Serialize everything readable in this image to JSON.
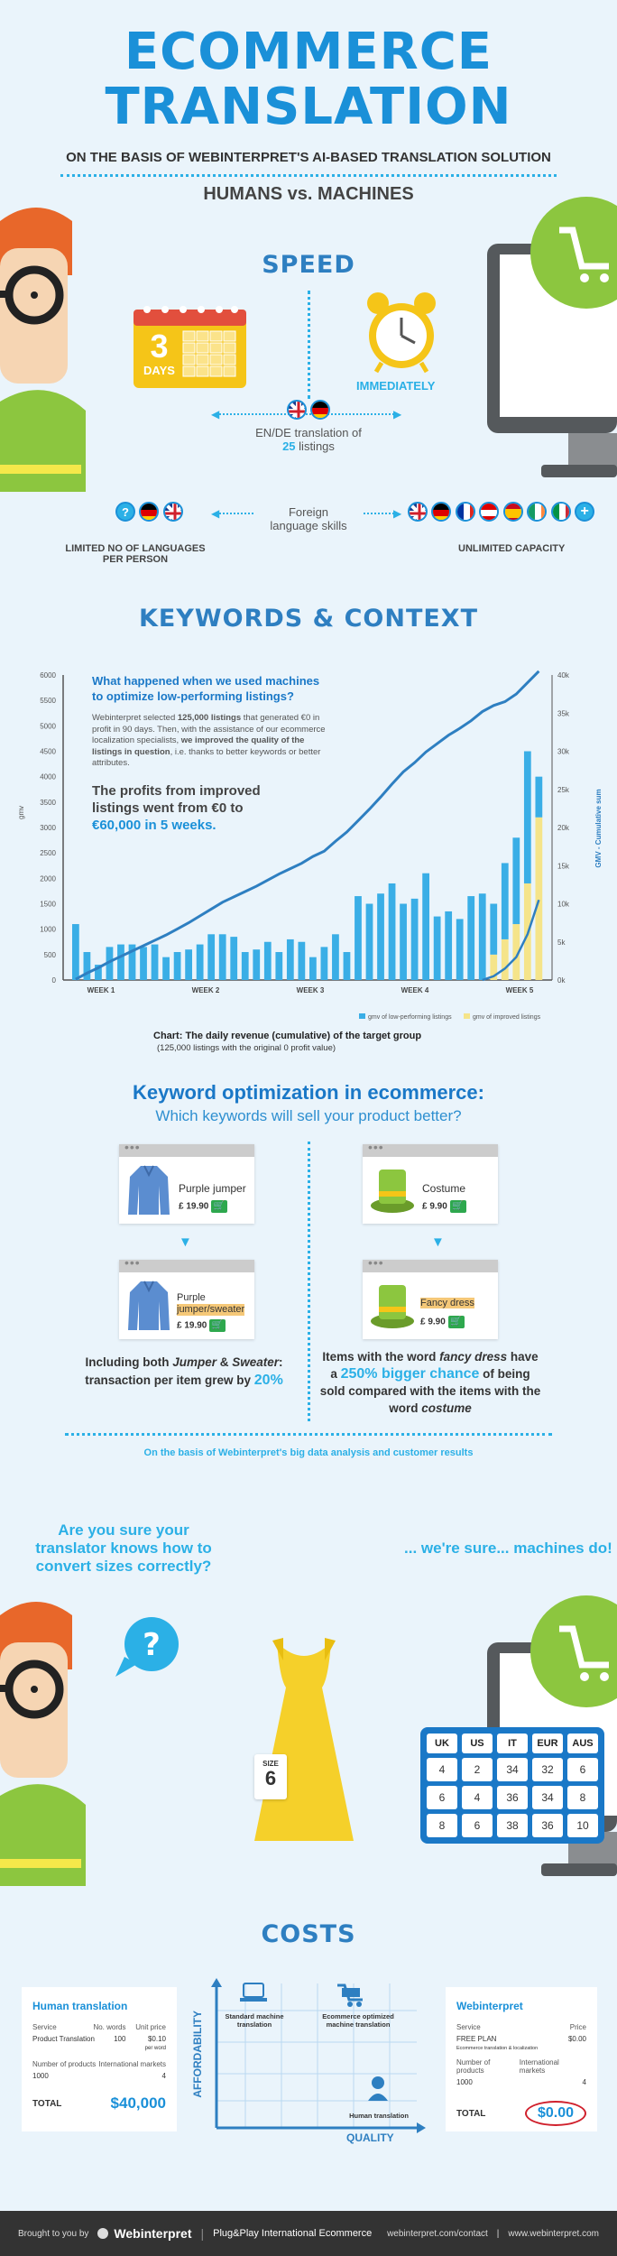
{
  "header": {
    "title_line1": "ECOMMERCE",
    "title_line2": "TRANSLATION",
    "subtitle": "ON THE BASIS OF WEBINTERPRET'S AI-BASED TRANSLATION SOLUTION",
    "tagline": "HUMANS vs. MACHINES"
  },
  "speed": {
    "title": "SPEED",
    "days_number": "3",
    "days_label": "DAYS",
    "immediately": "IMMEDIATELY",
    "translation_text": "EN/DE translation of",
    "listings_count": "25",
    "listings_label": "listings",
    "foreign_line1": "Foreign",
    "foreign_line2": "language skills",
    "limited_line1": "LIMITED NO OF LANGUAGES",
    "limited_line2": "PER PERSON",
    "unlimited": "UNLIMITED CAPACITY"
  },
  "keywords": {
    "title": "KEYWORDS & CONTEXT",
    "question": "What happened when we used machines to optimize low-performing listings?",
    "para_part1": "Webinterpret selected ",
    "para_bold1": "125,000 listings",
    "para_part2": " that generated €0 in profit in 90 days. Then, with the assistance of our ecommerce localization specialists, ",
    "para_bold2": "we improved the quality of the listings in question",
    "para_part3": ", i.e. thanks to better keywords or better attributes.",
    "profit_text": "The profits from improved listings went from €0 to",
    "profit_highlight": "€60,000 in 5 weeks.",
    "chart_caption": "Chart: The daily revenue (cumulative) of the target group",
    "chart_subcaption": "(125,000 listings with the original 0 profit value)"
  },
  "chart_data": {
    "type": "bar",
    "title": "",
    "ylabel": "gmv",
    "y2label": "GMV - Cumulative sum",
    "ylim": [
      0,
      6000
    ],
    "y2lim": [
      0,
      40000
    ],
    "yticks": [
      "0",
      "500",
      "1000",
      "1500",
      "2000",
      "2500",
      "3000",
      "3500",
      "4000",
      "4500",
      "5000",
      "5500",
      "6000"
    ],
    "y2ticks": [
      "0k",
      "5k",
      "10k",
      "15k",
      "20k",
      "25k",
      "30k",
      "35k",
      "40k"
    ],
    "week_labels": [
      "WEEK 1",
      "WEEK 2",
      "WEEK 3",
      "WEEK 4",
      "WEEK 5"
    ],
    "legend": [
      "gmv of low-performing listings",
      "gmv of improved listings"
    ],
    "colors": {
      "low": "#3aaee6",
      "improved": "#f5e48a",
      "line": "#2e7fc1"
    },
    "series": [
      {
        "name": "gmv of low-performing listings",
        "values": [
          1100,
          550,
          300,
          650,
          700,
          700,
          650,
          700,
          450,
          550,
          600,
          700,
          900,
          900,
          850,
          550,
          600,
          750,
          550,
          800,
          750,
          450,
          650,
          900,
          550,
          1650,
          1500,
          1700,
          1900,
          1500,
          1600,
          2100,
          1250,
          1350,
          1200,
          1650,
          1700,
          0,
          0,
          0,
          0,
          0
        ]
      },
      {
        "name": "gmv of improved listings",
        "values": [
          0,
          0,
          0,
          0,
          0,
          0,
          0,
          0,
          0,
          0,
          0,
          0,
          0,
          0,
          0,
          0,
          0,
          0,
          0,
          0,
          0,
          0,
          0,
          0,
          0,
          0,
          0,
          0,
          0,
          0,
          0,
          0,
          0,
          0,
          0,
          0,
          0,
          500,
          800,
          1100,
          1900,
          3200
        ]
      }
    ],
    "extra_low_week5": [
      1500,
      2300,
      2800,
      4500,
      4000
    ],
    "cumulative": [
      0.1,
      0.9,
      1.6,
      2.4,
      3.1,
      3.8,
      4.5,
      5.2,
      5.9,
      6.7,
      7.5,
      8.4,
      9.3,
      10.2,
      10.9,
      11.6,
      12.3,
      13.1,
      13.9,
      14.6,
      15.3,
      16.2,
      16.9,
      18.2,
      19.4,
      20.9,
      22.4,
      24.0,
      25.7,
      27.3,
      28.5,
      29.9,
      31.0,
      32.1,
      33.0,
      34.0,
      35.2,
      36.0,
      36.5,
      37.5,
      39.0,
      40.5
    ],
    "cumulative_improved": [
      0,
      0,
      0,
      0,
      0,
      0,
      0,
      0,
      0,
      0,
      0,
      0,
      0,
      0,
      0,
      0,
      0,
      0,
      0,
      0,
      0,
      0,
      0,
      0,
      0,
      0,
      0,
      0,
      0,
      0,
      0,
      0,
      0,
      0,
      0,
      0,
      0,
      0.5,
      1.5,
      3.0,
      6.0,
      10.5
    ]
  },
  "keyword_opt": {
    "title": "Keyword optimization in ecommerce:",
    "subtitle": "Which keywords will sell your product better?",
    "left_before_name": "Purple jumper",
    "left_before_price": "£ 19.90",
    "left_after_name_1": "Purple",
    "left_after_name_2": "jumper/sweater",
    "left_after_price": "£ 19.90",
    "right_before_name": "Costume",
    "right_before_price": "£ 9.90",
    "right_after_name": "Fancy dress",
    "right_after_price": "£ 9.90",
    "left_result_1": "Including both ",
    "left_result_i1": "Jumper",
    "left_result_2": " & ",
    "left_result_i2": "Sweater",
    "left_result_3": ":",
    "left_result_4": "transaction per item grew by ",
    "left_result_pct": "20%",
    "right_result_1": "Items with the word ",
    "right_result_i1": "fancy dress",
    "right_result_2": " have a ",
    "right_result_hl": "250% bigger chance",
    "right_result_3": " of being sold compared with the items with the word ",
    "right_result_i2": "costume",
    "footnote": "On the basis of Webinterpret's big data analysis and customer results"
  },
  "sizes": {
    "question": "Are you sure your translator knows how to convert sizes correctly?",
    "answer": "... we're sure... machines do!",
    "size_label": "SIZE",
    "size_value": "6",
    "headers": [
      "UK",
      "US",
      "IT",
      "EUR",
      "AUS"
    ],
    "rows": [
      [
        "4",
        "2",
        "34",
        "32",
        "6"
      ],
      [
        "6",
        "4",
        "36",
        "34",
        "8"
      ],
      [
        "8",
        "6",
        "38",
        "36",
        "10"
      ]
    ]
  },
  "costs": {
    "title": "COSTS",
    "human_title": "Human translation",
    "human_service_h": "Service",
    "human_words_h": "No. words",
    "human_price_h": "Unit price",
    "human_service": "Product Translation",
    "human_words": "100",
    "human_price": "$0.10",
    "human_price_sub": "per word",
    "human_products_h": "Number of products",
    "human_markets_h": "International markets",
    "human_products": "1000",
    "human_markets": "4",
    "human_total_label": "TOTAL",
    "human_total": "$40,000",
    "axis_y": "AFFORDABILITY",
    "axis_x": "QUALITY",
    "label_standard": "Standard machine translation",
    "label_ecom": "Ecommerce optimized machine translation",
    "label_human": "Human translation",
    "wi_title": "Webinterpret",
    "wi_service_h": "Service",
    "wi_price_h": "Price",
    "wi_service": "FREE PLAN",
    "wi_service_sub": "Ecommerce translation & localization",
    "wi_price": "$0.00",
    "wi_products_h": "Number of products",
    "wi_markets_h": "International markets",
    "wi_products": "1000",
    "wi_markets": "4",
    "wi_total_label": "TOTAL",
    "wi_total": "$0.00"
  },
  "footer": {
    "brought": "Brought to you by",
    "brand": "Webinterpret",
    "slogan": "Plug&Play International Ecommerce",
    "contact": "webinterpret.com/contact",
    "sep": "|",
    "site": "www.webinterpret.com"
  }
}
